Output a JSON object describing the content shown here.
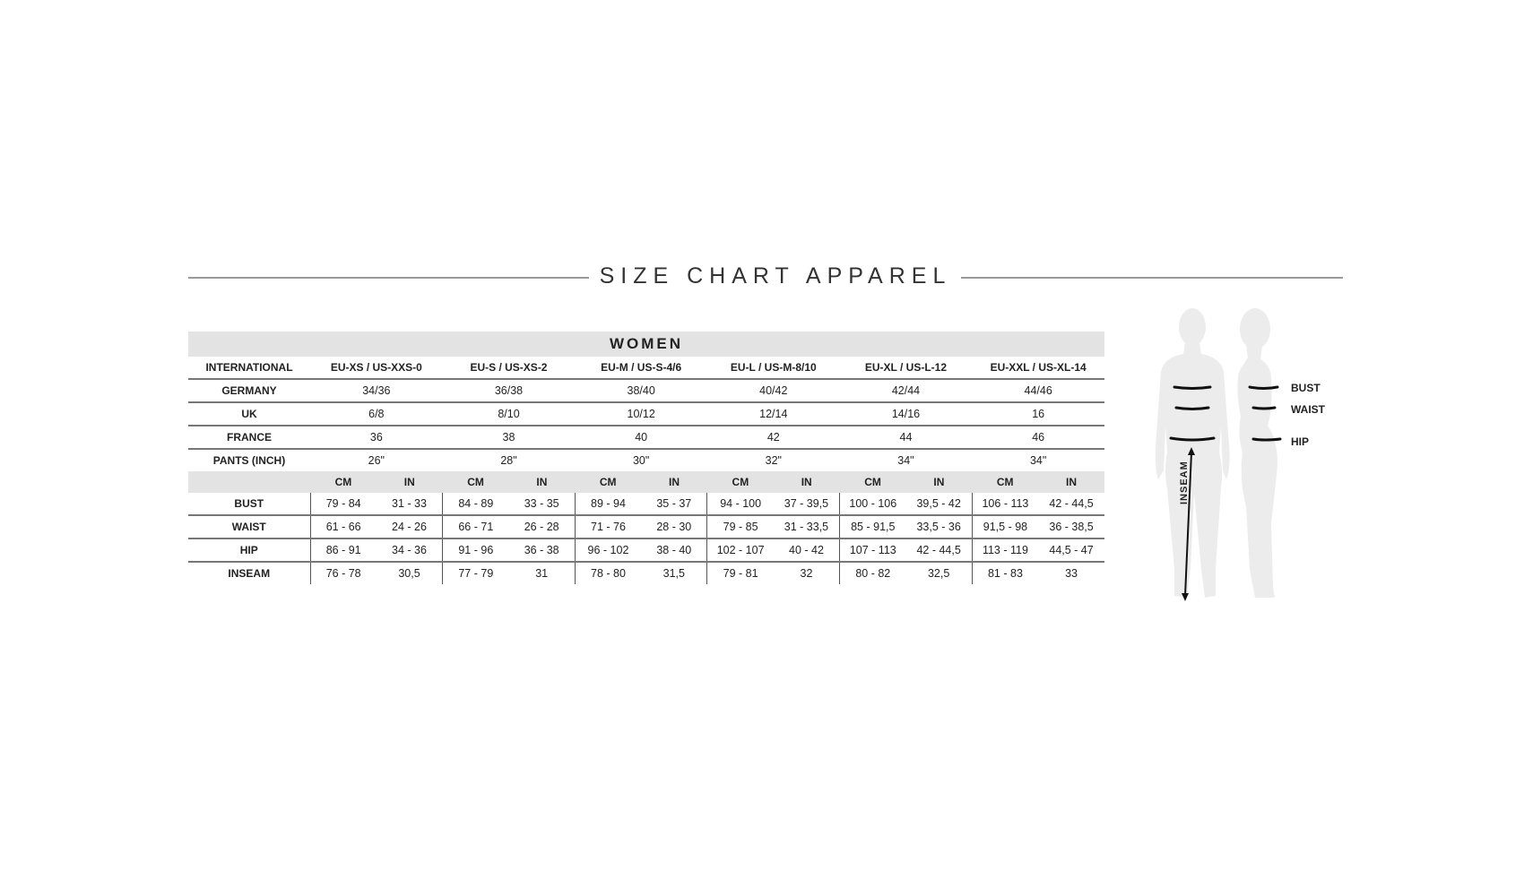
{
  "title": "SIZE CHART APPAREL",
  "section": "WOMEN",
  "size_rows": {
    "international": {
      "label": "INTERNATIONAL",
      "values": [
        "EU-XS / US-XXS-0",
        "EU-S / US-XS-2",
        "EU-M / US-S-4/6",
        "EU-L / US-M-8/10",
        "EU-XL / US-L-12",
        "EU-XXL / US-XL-14"
      ]
    },
    "rows": [
      {
        "label": "GERMANY",
        "values": [
          "34/36",
          "36/38",
          "38/40",
          "40/42",
          "42/44",
          "44/46"
        ]
      },
      {
        "label": "UK",
        "values": [
          "6/8",
          "8/10",
          "10/12",
          "12/14",
          "14/16",
          "16"
        ]
      },
      {
        "label": "FRANCE",
        "values": [
          "36",
          "38",
          "40",
          "42",
          "44",
          "46"
        ]
      },
      {
        "label": "PANTS (INCH)",
        "values": [
          "26\"",
          "28\"",
          "30\"",
          "32\"",
          "34\"",
          "34\""
        ]
      }
    ]
  },
  "units": {
    "cm": "CM",
    "in": "IN"
  },
  "measure_rows": [
    {
      "label": "BUST",
      "values": [
        "79 - 84",
        "31 - 33",
        "84 - 89",
        "33 - 35",
        "89 - 94",
        "35 - 37",
        "94 - 100",
        "37 - 39,5",
        "100 - 106",
        "39,5 - 42",
        "106 - 113",
        "42 - 44,5"
      ]
    },
    {
      "label": "WAIST",
      "values": [
        "61 - 66",
        "24 - 26",
        "66 - 71",
        "26 - 28",
        "71 - 76",
        "28 - 30",
        "79 - 85",
        "31 - 33,5",
        "85 - 91,5",
        "33,5 - 36",
        "91,5 - 98",
        "36 - 38,5"
      ]
    },
    {
      "label": "HIP",
      "values": [
        "86 - 91",
        "34 - 36",
        "91 - 96",
        "36 - 38",
        "96 - 102",
        "38 - 40",
        "102 - 107",
        "40 - 42",
        "107 - 113",
        "42 - 44,5",
        "113 - 119",
        "44,5 - 47"
      ]
    },
    {
      "label": "INSEAM",
      "values": [
        "76 - 78",
        "30,5",
        "77 - 79",
        "31",
        "78 - 80",
        "31,5",
        "79 - 81",
        "32",
        "80 - 82",
        "32,5",
        "81 - 83",
        "33"
      ]
    }
  ],
  "figure_labels": {
    "bust": "BUST",
    "waist": "WAIST",
    "hip": "HIP",
    "inseam": "INSEAM"
  },
  "colors": {
    "band": "#e3e3e3",
    "rule": "#9a9a9a",
    "figure": "#ececec"
  }
}
